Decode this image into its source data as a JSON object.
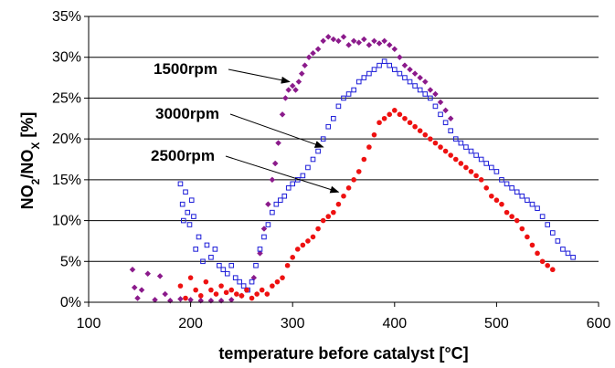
{
  "chart_data": {
    "type": "scatter",
    "title": "",
    "xlabel": "temperature before catalyst [°C]",
    "ylabel": "NO2/NOX [%]",
    "ylabel_parts": {
      "a": "NO",
      "b": "2",
      "c": "/NO",
      "d": "X",
      "e": " [%]"
    },
    "xlim": [
      100,
      600
    ],
    "ylim": [
      0,
      35
    ],
    "x_ticks": [
      100,
      200,
      300,
      400,
      500,
      600
    ],
    "y_ticks": [
      0,
      5,
      10,
      15,
      20,
      25,
      30,
      35
    ],
    "x_tick_labels": [
      "100",
      "200",
      "300",
      "400",
      "500",
      "600"
    ],
    "y_tick_labels": [
      "0%",
      "5%",
      "10%",
      "15%",
      "20%",
      "25%",
      "30%",
      "35%"
    ],
    "grid": "horizontal",
    "annotations": [
      {
        "text": "1500rpm",
        "series": "1500rpm",
        "point_to": [
          297,
          27
        ]
      },
      {
        "text": "3000rpm",
        "series": "3000rpm",
        "point_to": [
          330,
          19
        ]
      },
      {
        "text": "2500rpm",
        "series": "2500rpm",
        "point_to": [
          345,
          13.5
        ]
      }
    ],
    "series": [
      {
        "name": "1500rpm",
        "color": "#8b1a8b",
        "marker": "diamond",
        "points": [
          [
            143,
            4.0
          ],
          [
            145,
            1.8
          ],
          [
            148,
            0.5
          ],
          [
            152,
            1.5
          ],
          [
            158,
            3.5
          ],
          [
            165,
            0.3
          ],
          [
            170,
            3.2
          ],
          [
            175,
            1.0
          ],
          [
            180,
            0.2
          ],
          [
            190,
            0.4
          ],
          [
            200,
            0.3
          ],
          [
            210,
            0.2
          ],
          [
            220,
            0.2
          ],
          [
            230,
            0.2
          ],
          [
            240,
            0.3
          ],
          [
            250,
            0.8
          ],
          [
            255,
            1.5
          ],
          [
            262,
            3.0
          ],
          [
            268,
            6.0
          ],
          [
            272,
            9.0
          ],
          [
            276,
            12.0
          ],
          [
            280,
            15.0
          ],
          [
            283,
            17.0
          ],
          [
            286,
            19.5
          ],
          [
            290,
            23.0
          ],
          [
            293,
            25.0
          ],
          [
            296,
            26.0
          ],
          [
            300,
            26.5
          ],
          [
            303,
            26.0
          ],
          [
            306,
            27.0
          ],
          [
            309,
            28.0
          ],
          [
            312,
            29.0
          ],
          [
            316,
            30.0
          ],
          [
            320,
            30.5
          ],
          [
            325,
            31.0
          ],
          [
            330,
            32.0
          ],
          [
            335,
            32.5
          ],
          [
            340,
            32.2
          ],
          [
            345,
            32.0
          ],
          [
            350,
            32.5
          ],
          [
            355,
            31.5
          ],
          [
            360,
            32.0
          ],
          [
            365,
            31.8
          ],
          [
            370,
            32.2
          ],
          [
            375,
            31.5
          ],
          [
            380,
            32.0
          ],
          [
            385,
            31.7
          ],
          [
            390,
            32.0
          ],
          [
            395,
            31.5
          ],
          [
            400,
            31.0
          ],
          [
            405,
            30.0
          ],
          [
            410,
            29.0
          ],
          [
            415,
            28.5
          ],
          [
            420,
            28.0
          ],
          [
            425,
            27.5
          ],
          [
            430,
            27.0
          ],
          [
            435,
            26.0
          ],
          [
            440,
            25.5
          ],
          [
            445,
            24.5
          ],
          [
            450,
            23.5
          ],
          [
            455,
            22.5
          ]
        ]
      },
      {
        "name": "3000rpm",
        "color": "#1c1cd8",
        "marker": "square",
        "points": [
          [
            190,
            14.5
          ],
          [
            192,
            12.0
          ],
          [
            193,
            10.0
          ],
          [
            195,
            13.5
          ],
          [
            197,
            11.0
          ],
          [
            199,
            9.5
          ],
          [
            201,
            12.5
          ],
          [
            203,
            10.5
          ],
          [
            205,
            6.5
          ],
          [
            208,
            8.0
          ],
          [
            212,
            5.0
          ],
          [
            216,
            7.0
          ],
          [
            220,
            5.5
          ],
          [
            224,
            6.5
          ],
          [
            228,
            4.5
          ],
          [
            232,
            4.0
          ],
          [
            236,
            3.5
          ],
          [
            240,
            4.5
          ],
          [
            244,
            3.0
          ],
          [
            248,
            2.5
          ],
          [
            252,
            2.0
          ],
          [
            256,
            1.5
          ],
          [
            260,
            2.5
          ],
          [
            264,
            4.5
          ],
          [
            268,
            6.5
          ],
          [
            272,
            8.0
          ],
          [
            276,
            9.5
          ],
          [
            280,
            11.0
          ],
          [
            284,
            12.0
          ],
          [
            288,
            12.5
          ],
          [
            292,
            13.0
          ],
          [
            296,
            14.0
          ],
          [
            300,
            14.5
          ],
          [
            305,
            15.0
          ],
          [
            310,
            15.5
          ],
          [
            315,
            16.5
          ],
          [
            320,
            17.5
          ],
          [
            325,
            18.5
          ],
          [
            330,
            20.0
          ],
          [
            335,
            21.5
          ],
          [
            340,
            22.5
          ],
          [
            345,
            24.0
          ],
          [
            350,
            25.0
          ],
          [
            355,
            25.5
          ],
          [
            360,
            26.0
          ],
          [
            365,
            27.0
          ],
          [
            370,
            27.5
          ],
          [
            375,
            28.0
          ],
          [
            380,
            28.5
          ],
          [
            385,
            29.0
          ],
          [
            390,
            29.5
          ],
          [
            395,
            29.0
          ],
          [
            400,
            28.5
          ],
          [
            405,
            28.0
          ],
          [
            410,
            27.5
          ],
          [
            415,
            27.0
          ],
          [
            420,
            26.5
          ],
          [
            425,
            26.0
          ],
          [
            430,
            25.5
          ],
          [
            435,
            25.0
          ],
          [
            440,
            24.0
          ],
          [
            445,
            23.0
          ],
          [
            450,
            22.0
          ],
          [
            455,
            21.0
          ],
          [
            460,
            20.0
          ],
          [
            465,
            19.5
          ],
          [
            470,
            19.0
          ],
          [
            475,
            18.5
          ],
          [
            480,
            18.0
          ],
          [
            485,
            17.5
          ],
          [
            490,
            17.0
          ],
          [
            495,
            16.5
          ],
          [
            500,
            16.0
          ],
          [
            505,
            15.0
          ],
          [
            510,
            14.5
          ],
          [
            515,
            14.0
          ],
          [
            520,
            13.5
          ],
          [
            525,
            13.0
          ],
          [
            530,
            12.5
          ],
          [
            535,
            12.0
          ],
          [
            540,
            11.5
          ],
          [
            545,
            10.5
          ],
          [
            550,
            9.5
          ],
          [
            555,
            8.5
          ],
          [
            560,
            7.5
          ],
          [
            565,
            6.5
          ],
          [
            570,
            6.0
          ],
          [
            575,
            5.5
          ]
        ]
      },
      {
        "name": "2500rpm",
        "color": "#ee1111",
        "marker": "circle",
        "points": [
          [
            190,
            2.0
          ],
          [
            195,
            0.5
          ],
          [
            200,
            3.0
          ],
          [
            205,
            1.5
          ],
          [
            210,
            0.8
          ],
          [
            215,
            2.5
          ],
          [
            220,
            1.5
          ],
          [
            225,
            1.0
          ],
          [
            230,
            2.0
          ],
          [
            235,
            1.2
          ],
          [
            240,
            1.5
          ],
          [
            245,
            1.0
          ],
          [
            250,
            0.8
          ],
          [
            255,
            1.5
          ],
          [
            260,
            0.5
          ],
          [
            265,
            1.0
          ],
          [
            270,
            1.5
          ],
          [
            275,
            1.0
          ],
          [
            280,
            2.0
          ],
          [
            285,
            2.5
          ],
          [
            290,
            3.0
          ],
          [
            295,
            4.5
          ],
          [
            300,
            5.5
          ],
          [
            305,
            6.5
          ],
          [
            310,
            7.0
          ],
          [
            315,
            7.5
          ],
          [
            320,
            8.0
          ],
          [
            325,
            9.0
          ],
          [
            330,
            10.0
          ],
          [
            335,
            10.5
          ],
          [
            340,
            11.0
          ],
          [
            345,
            12.0
          ],
          [
            350,
            13.0
          ],
          [
            355,
            14.0
          ],
          [
            360,
            15.0
          ],
          [
            365,
            16.0
          ],
          [
            370,
            17.5
          ],
          [
            375,
            19.0
          ],
          [
            380,
            20.5
          ],
          [
            385,
            22.0
          ],
          [
            390,
            22.5
          ],
          [
            395,
            23.0
          ],
          [
            400,
            23.5
          ],
          [
            405,
            23.0
          ],
          [
            410,
            22.5
          ],
          [
            415,
            22.0
          ],
          [
            420,
            21.5
          ],
          [
            425,
            21.0
          ],
          [
            430,
            20.5
          ],
          [
            435,
            20.0
          ],
          [
            440,
            19.5
          ],
          [
            445,
            19.0
          ],
          [
            450,
            18.5
          ],
          [
            455,
            18.0
          ],
          [
            460,
            17.5
          ],
          [
            465,
            17.0
          ],
          [
            470,
            16.5
          ],
          [
            475,
            16.0
          ],
          [
            480,
            15.5
          ],
          [
            485,
            15.0
          ],
          [
            490,
            14.0
          ],
          [
            495,
            13.0
          ],
          [
            500,
            12.5
          ],
          [
            505,
            12.0
          ],
          [
            510,
            11.0
          ],
          [
            515,
            10.5
          ],
          [
            520,
            10.0
          ],
          [
            525,
            9.0
          ],
          [
            530,
            8.0
          ],
          [
            535,
            7.0
          ],
          [
            540,
            6.0
          ],
          [
            545,
            5.0
          ],
          [
            550,
            4.5
          ],
          [
            555,
            4.0
          ]
        ]
      }
    ]
  }
}
